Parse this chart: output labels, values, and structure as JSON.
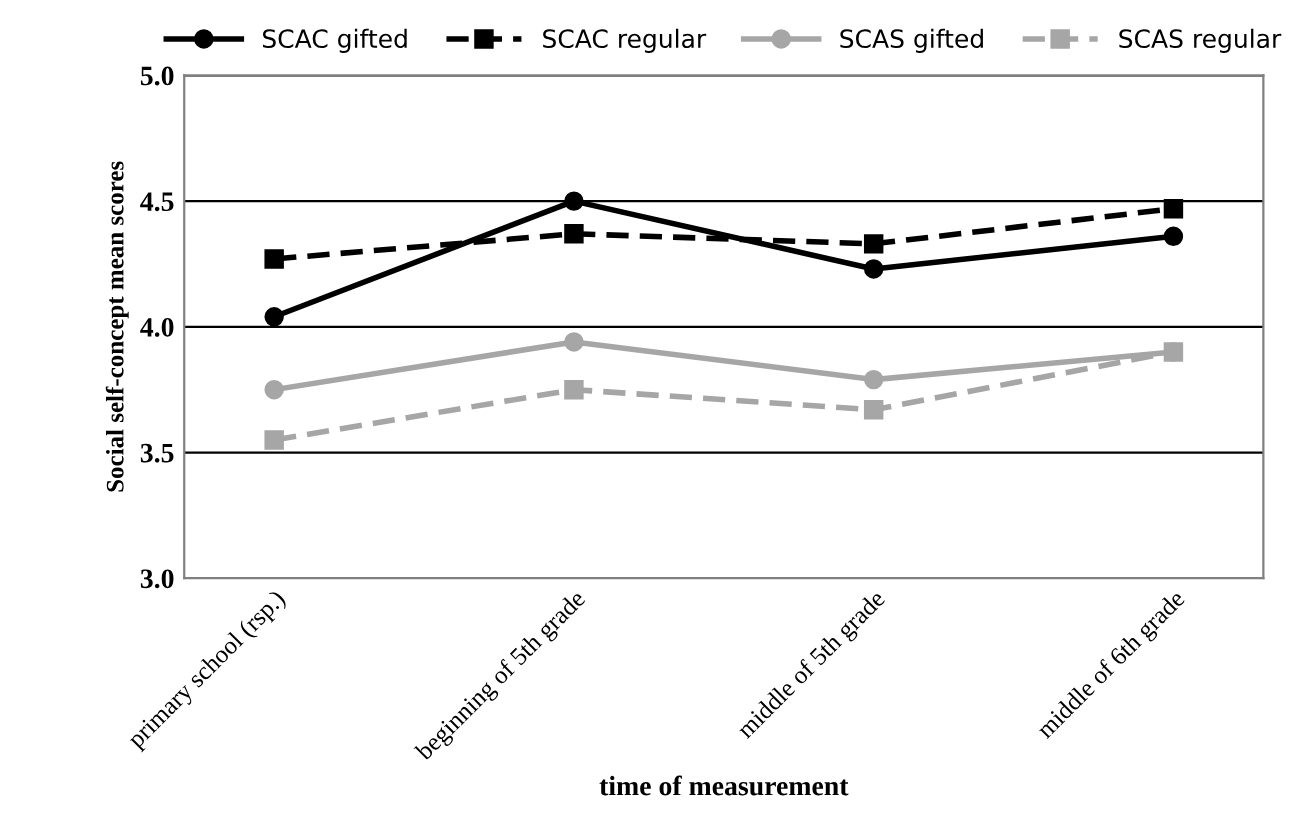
{
  "chart_data": {
    "type": "line",
    "xlabel": "time of measurement",
    "ylabel": "Social self-concept mean scores",
    "categories": [
      "primary school (rsp.)",
      "beginning of 5th grade",
      "middle of 5th grade",
      "middle of 6th grade"
    ],
    "series": [
      {
        "name": "SCAC gifted",
        "color": "#000000",
        "marker": "circle",
        "line_style": "solid",
        "values": [
          4.04,
          4.5,
          4.23,
          4.36
        ]
      },
      {
        "name": "SCAC regular",
        "color": "#000000",
        "marker": "square",
        "line_style": "dashed",
        "values": [
          4.27,
          4.37,
          4.33,
          4.47
        ]
      },
      {
        "name": "SCAS gifted",
        "color": "#a6a6a6",
        "marker": "circle",
        "line_style": "solid",
        "values": [
          3.75,
          3.94,
          3.79,
          3.9
        ]
      },
      {
        "name": "SCAS regular",
        "color": "#a6a6a6",
        "marker": "square",
        "line_style": "dashed",
        "values": [
          3.55,
          3.75,
          3.67,
          3.9
        ]
      }
    ],
    "ylim": [
      3.0,
      5.0
    ],
    "yticks": [
      {
        "value": 3.0,
        "label": "3.0"
      },
      {
        "value": 3.5,
        "label": "3.5"
      },
      {
        "value": 4.0,
        "label": "4.0"
      },
      {
        "value": 4.5,
        "label": "4.5"
      },
      {
        "value": 5.0,
        "label": "5.0"
      }
    ],
    "grid": "y",
    "legend": "top"
  }
}
